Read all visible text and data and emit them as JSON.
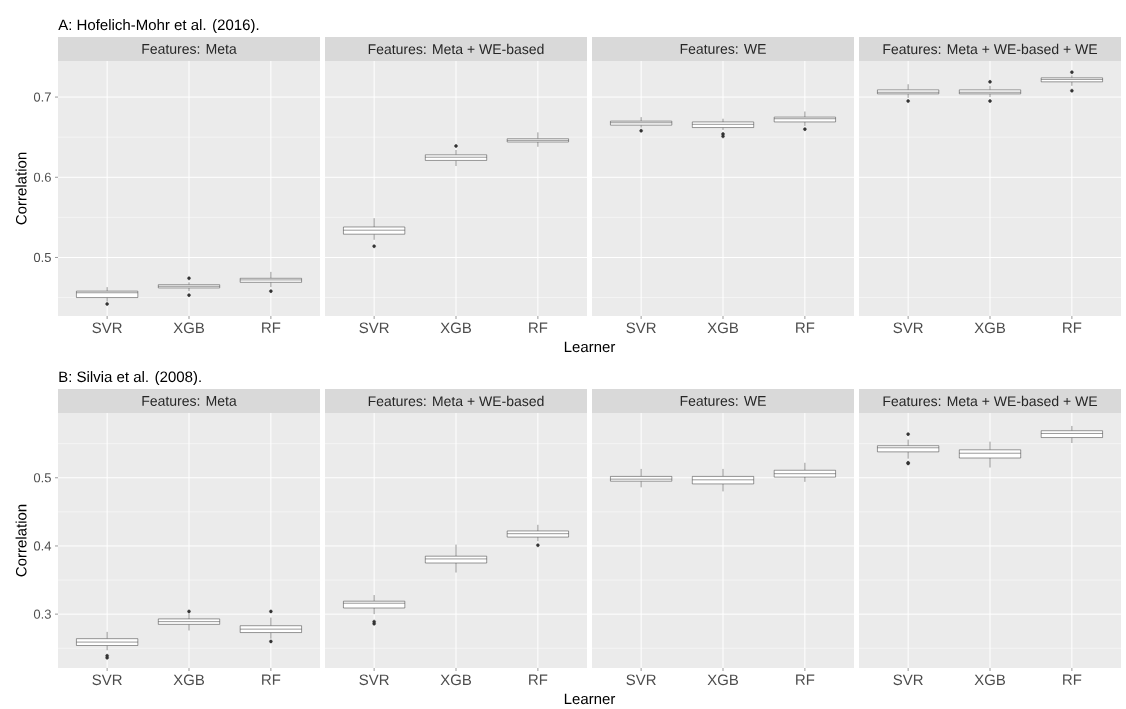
{
  "chart_data": [
    {
      "type": "box",
      "title": "Features: Meta",
      "annotations": [
        "A: Hofelich-Mohr et al. (2016)."
      ],
      "ylabel": "Correlation",
      "categories": [
        "SVR",
        "XGB",
        "RF"
      ],
      "color": "#333333",
      "grid": true,
      "ylim": [
        0.427,
        0.745
      ],
      "yticks": [
        0.5,
        0.6,
        0.7
      ],
      "boxes": [
        {
          "low": 0.445,
          "q1": 0.45,
          "median": 0.456,
          "q3": 0.458,
          "high": 0.463,
          "outliers": [
            0.442
          ]
        },
        {
          "low": 0.458,
          "q1": 0.462,
          "median": 0.464,
          "q3": 0.466,
          "high": 0.469,
          "outliers": [
            0.474,
            0.453
          ]
        },
        {
          "low": 0.463,
          "q1": 0.469,
          "median": 0.472,
          "q3": 0.474,
          "high": 0.482,
          "outliers": [
            0.458
          ]
        }
      ]
    },
    {
      "type": "box",
      "title": "Features: Meta + WE-based",
      "xlabel": "Learner",
      "categories": [
        "SVR",
        "XGB",
        "RF"
      ],
      "color": "#333333",
      "grid": true,
      "tick_labels": "x",
      "ylim": [
        0.427,
        0.745
      ],
      "yticks": [
        0.5,
        0.6,
        0.7
      ],
      "boxes": [
        {
          "low": 0.522,
          "q1": 0.529,
          "median": 0.534,
          "q3": 0.538,
          "high": 0.549,
          "outliers": [
            0.514
          ]
        },
        {
          "low": 0.614,
          "q1": 0.621,
          "median": 0.625,
          "q3": 0.628,
          "high": 0.634,
          "outliers": [
            0.639
          ]
        },
        {
          "low": 0.638,
          "q1": 0.644,
          "median": 0.646,
          "q3": 0.648,
          "high": 0.656
        }
      ]
    },
    {
      "type": "box",
      "title": "Features: WE",
      "categories": [
        "SVR",
        "XGB",
        "RF"
      ],
      "color": "#333333",
      "grid": true,
      "tick_labels": "x",
      "ylim": [
        0.427,
        0.745
      ],
      "yticks": [
        0.5,
        0.6,
        0.7
      ],
      "boxes": [
        {
          "low": 0.662,
          "q1": 0.665,
          "median": 0.668,
          "q3": 0.67,
          "high": 0.675,
          "outliers": [
            0.658
          ]
        },
        {
          "low": 0.659,
          "q1": 0.662,
          "median": 0.666,
          "q3": 0.669,
          "high": 0.673,
          "outliers": [
            0.654,
            0.651
          ]
        },
        {
          "low": 0.664,
          "q1": 0.669,
          "median": 0.673,
          "q3": 0.675,
          "high": 0.682,
          "outliers": [
            0.66
          ]
        }
      ]
    },
    {
      "type": "box",
      "title": "Features: Meta + WE-based + WE",
      "categories": [
        "SVR",
        "XGB",
        "RF"
      ],
      "color": "#333333",
      "grid": true,
      "tick_labels": "x",
      "ylim": [
        0.427,
        0.745
      ],
      "yticks": [
        0.5,
        0.6,
        0.7
      ],
      "boxes": [
        {
          "low": 0.699,
          "q1": 0.704,
          "median": 0.706,
          "q3": 0.709,
          "high": 0.716,
          "outliers": [
            0.695
          ]
        },
        {
          "low": 0.7,
          "q1": 0.704,
          "median": 0.706,
          "q3": 0.709,
          "high": 0.714,
          "outliers": [
            0.719,
            0.695
          ]
        },
        {
          "low": 0.714,
          "q1": 0.719,
          "median": 0.722,
          "q3": 0.724,
          "high": 0.727,
          "outliers": [
            0.731,
            0.708
          ]
        }
      ]
    },
    {
      "type": "box",
      "title": "Features: Meta",
      "annotations": [
        "B: Silvia et al. (2008)."
      ],
      "ylabel": "Correlation",
      "categories": [
        "SVR",
        "XGB",
        "RF"
      ],
      "color": "#333333",
      "grid": true,
      "ylim": [
        0.221,
        0.595
      ],
      "yticks": [
        0.3,
        0.4,
        0.5
      ],
      "boxes": [
        {
          "low": 0.247,
          "q1": 0.254,
          "median": 0.259,
          "q3": 0.264,
          "high": 0.274,
          "outliers": [
            0.239,
            0.236
          ]
        },
        {
          "low": 0.276,
          "q1": 0.285,
          "median": 0.289,
          "q3": 0.293,
          "high": 0.301,
          "outliers": [
            0.304
          ]
        },
        {
          "low": 0.264,
          "q1": 0.273,
          "median": 0.278,
          "q3": 0.283,
          "high": 0.295,
          "outliers": [
            0.304,
            0.26
          ]
        }
      ]
    },
    {
      "type": "box",
      "title": "Features: Meta + WE-based",
      "xlabel": "Learner",
      "categories": [
        "SVR",
        "XGB",
        "RF"
      ],
      "color": "#333333",
      "grid": true,
      "tick_labels": "x",
      "ylim": [
        0.221,
        0.595
      ],
      "yticks": [
        0.3,
        0.4,
        0.5
      ],
      "boxes": [
        {
          "low": 0.3,
          "q1": 0.309,
          "median": 0.316,
          "q3": 0.319,
          "high": 0.328,
          "outliers": [
            0.289,
            0.286
          ]
        },
        {
          "low": 0.361,
          "q1": 0.375,
          "median": 0.381,
          "q3": 0.385,
          "high": 0.402
        },
        {
          "low": 0.407,
          "q1": 0.413,
          "median": 0.418,
          "q3": 0.422,
          "high": 0.431,
          "outliers": [
            0.401
          ]
        }
      ]
    },
    {
      "type": "box",
      "title": "Features: WE",
      "categories": [
        "SVR",
        "XGB",
        "RF"
      ],
      "color": "#333333",
      "grid": true,
      "tick_labels": "x",
      "ylim": [
        0.221,
        0.595
      ],
      "yticks": [
        0.3,
        0.4,
        0.5
      ],
      "boxes": [
        {
          "low": 0.486,
          "q1": 0.495,
          "median": 0.498,
          "q3": 0.502,
          "high": 0.513
        },
        {
          "low": 0.48,
          "q1": 0.491,
          "median": 0.497,
          "q3": 0.502,
          "high": 0.513
        },
        {
          "low": 0.494,
          "q1": 0.501,
          "median": 0.506,
          "q3": 0.511,
          "high": 0.522
        }
      ]
    },
    {
      "type": "box",
      "title": "Features: Meta + WE-based + WE",
      "categories": [
        "SVR",
        "XGB",
        "RF"
      ],
      "color": "#333333",
      "grid": true,
      "tick_labels": "x",
      "ylim": [
        0.221,
        0.595
      ],
      "yticks": [
        0.3,
        0.4,
        0.5
      ],
      "boxes": [
        {
          "low": 0.528,
          "q1": 0.538,
          "median": 0.544,
          "q3": 0.547,
          "high": 0.556,
          "outliers": [
            0.564,
            0.522,
            0.521
          ]
        },
        {
          "low": 0.515,
          "q1": 0.529,
          "median": 0.536,
          "q3": 0.541,
          "high": 0.553
        },
        {
          "low": 0.551,
          "q1": 0.559,
          "median": 0.565,
          "q3": 0.569,
          "high": 0.576
        }
      ]
    }
  ]
}
